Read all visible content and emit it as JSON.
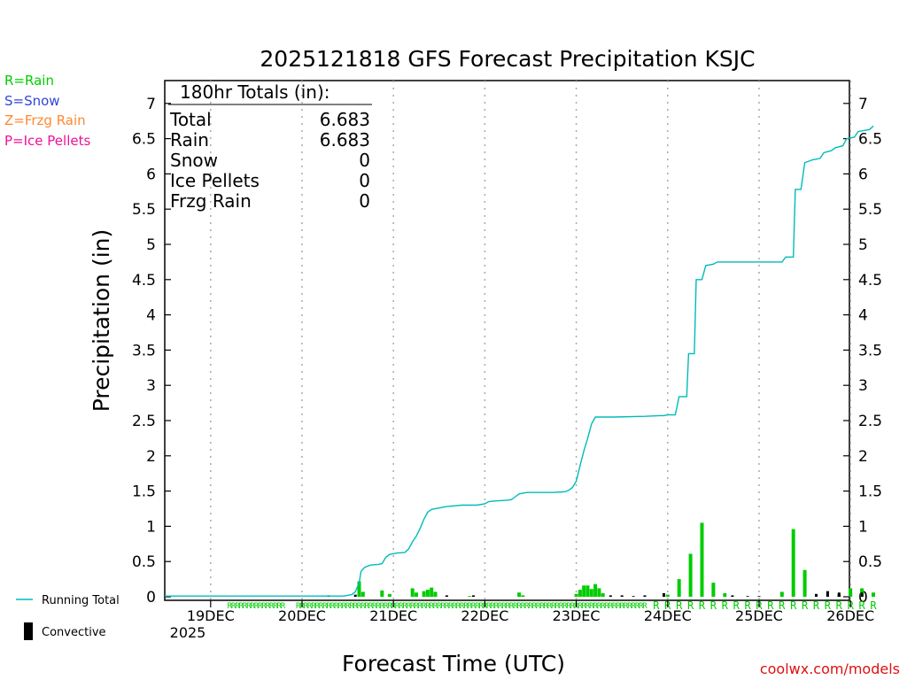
{
  "chart_data": {
    "type": "bar+line",
    "title": "2025121818 GFS Forecast Precipitation KSJC",
    "xlabel": "Forecast Time (UTC)",
    "ylabel": "Precipitation (in)",
    "ylim": [
      0,
      7.3
    ],
    "yticks": [
      0,
      0.5,
      1,
      1.5,
      2,
      2.5,
      3,
      3.5,
      4,
      4.5,
      5,
      5.5,
      6,
      6.5,
      7
    ],
    "ytick_labels": [
      "0",
      "0.5",
      "1",
      "1.5",
      "2",
      "2.5",
      "3",
      "3.5",
      "4",
      "4.5",
      "5",
      "5.5",
      "6",
      "6.5",
      "7"
    ],
    "xlim_hours": [
      -3,
      180
    ],
    "x_ticks": [
      {
        "hour": 6,
        "label": "19DEC"
      },
      {
        "hour": 30,
        "label": "20DEC"
      },
      {
        "hour": 54,
        "label": "21DEC"
      },
      {
        "hour": 78,
        "label": "22DEC"
      },
      {
        "hour": 102,
        "label": "23DEC"
      },
      {
        "hour": 126,
        "label": "24DEC"
      },
      {
        "hour": 150,
        "label": "25DEC"
      },
      {
        "hour": 174,
        "label": "26DEC"
      }
    ],
    "year_label": "2025",
    "grid": "dotted vertical at day boundaries",
    "legend": {
      "precip_types": [
        {
          "label": "R=Rain",
          "color": "#00cc00"
        },
        {
          "label": "S=Snow",
          "color": "#3344dd"
        },
        {
          "label": "Z=Frzg Rain",
          "color": "#ff8833"
        },
        {
          "label": "P=Ice Pellets",
          "color": "#ee1199"
        }
      ],
      "running_total_label": "Running Total",
      "convective_label": "Convective"
    },
    "totals_box": {
      "heading": "180hr Totals (in):",
      "rows": [
        {
          "label": "Total",
          "value": "6.683"
        },
        {
          "label": "Rain",
          "value": "6.683"
        },
        {
          "label": "Snow",
          "value": "0"
        },
        {
          "label": "Ice Pellets",
          "value": "0"
        },
        {
          "label": "Frzg Rain",
          "value": "0"
        }
      ]
    },
    "credit": "coolwx.com/models",
    "running_total": {
      "name": "Running Total",
      "color": "#00bbbb",
      "points": [
        [
          0,
          0.01
        ],
        [
          41,
          0.01
        ],
        [
          43,
          0.03
        ],
        [
          44,
          0.07
        ],
        [
          45,
          0.2
        ],
        [
          45.5,
          0.36
        ],
        [
          46.5,
          0.42
        ],
        [
          48,
          0.45
        ],
        [
          50,
          0.46
        ],
        [
          51,
          0.47
        ],
        [
          52,
          0.56
        ],
        [
          53,
          0.6
        ],
        [
          55,
          0.62
        ],
        [
          57,
          0.63
        ],
        [
          58,
          0.68
        ],
        [
          59,
          0.78
        ],
        [
          60,
          0.86
        ],
        [
          61,
          0.97
        ],
        [
          62,
          1.1
        ],
        [
          63,
          1.2
        ],
        [
          64,
          1.24
        ],
        [
          66,
          1.26
        ],
        [
          68,
          1.28
        ],
        [
          70,
          1.29
        ],
        [
          72,
          1.3
        ],
        [
          74,
          1.3
        ],
        [
          76,
          1.3
        ],
        [
          78,
          1.32
        ],
        [
          79,
          1.35
        ],
        [
          81,
          1.36
        ],
        [
          84,
          1.37
        ],
        [
          85,
          1.38
        ],
        [
          86,
          1.42
        ],
        [
          87,
          1.46
        ],
        [
          89,
          1.48
        ],
        [
          96,
          1.48
        ],
        [
          99,
          1.49
        ],
        [
          100,
          1.51
        ],
        [
          101,
          1.55
        ],
        [
          102,
          1.64
        ],
        [
          103,
          1.86
        ],
        [
          104,
          2.07
        ],
        [
          105,
          2.25
        ],
        [
          106,
          2.45
        ],
        [
          107,
          2.55
        ],
        [
          112,
          2.55
        ],
        [
          120,
          2.56
        ],
        [
          124,
          2.57
        ],
        [
          125,
          2.57
        ],
        [
          126,
          2.58
        ],
        [
          128,
          2.58
        ],
        [
          129,
          2.84
        ],
        [
          131,
          2.84
        ],
        [
          131.5,
          3.45
        ],
        [
          133,
          3.45
        ],
        [
          133.5,
          4.5
        ],
        [
          135,
          4.5
        ],
        [
          136,
          4.7
        ],
        [
          138,
          4.72
        ],
        [
          139,
          4.75
        ],
        [
          148,
          4.75
        ],
        [
          156,
          4.75
        ],
        [
          157,
          4.82
        ],
        [
          159,
          4.82
        ],
        [
          159.5,
          5.78
        ],
        [
          161,
          5.78
        ],
        [
          162,
          6.16
        ],
        [
          164,
          6.2
        ],
        [
          166,
          6.22
        ],
        [
          167,
          6.3
        ],
        [
          169,
          6.33
        ],
        [
          170,
          6.37
        ],
        [
          172,
          6.4
        ],
        [
          173,
          6.5
        ],
        [
          175,
          6.52
        ],
        [
          176,
          6.6
        ],
        [
          179,
          6.63
        ],
        [
          180,
          6.68
        ]
      ]
    },
    "series": [
      {
        "name": "Rain",
        "color": "#00cc00",
        "bars": [
          [
            45,
            0.22
          ],
          [
            46,
            0.07
          ],
          [
            51,
            0.09
          ],
          [
            53,
            0.04
          ],
          [
            59,
            0.12
          ],
          [
            60,
            0.06
          ],
          [
            62,
            0.08
          ],
          [
            63,
            0.1
          ],
          [
            64,
            0.13
          ],
          [
            65,
            0.07
          ],
          [
            74,
            0.01
          ],
          [
            87,
            0.06
          ],
          [
            88,
            0.02
          ],
          [
            102,
            0.04
          ],
          [
            103,
            0.1
          ],
          [
            104,
            0.16
          ],
          [
            105,
            0.16
          ],
          [
            106,
            0.11
          ],
          [
            107,
            0.18
          ],
          [
            108,
            0.12
          ],
          [
            109,
            0.05
          ],
          [
            126,
            0.03
          ],
          [
            129,
            0.25
          ],
          [
            132,
            0.61
          ],
          [
            135,
            1.05
          ],
          [
            138,
            0.2
          ],
          [
            141,
            0.05
          ],
          [
            156,
            0.07
          ],
          [
            159,
            0.96
          ],
          [
            162,
            0.38
          ],
          [
            171,
            0.03
          ],
          [
            174,
            0.12
          ],
          [
            177,
            0.12
          ],
          [
            180,
            0.06
          ]
        ]
      },
      {
        "name": "Convective",
        "color": "#000000",
        "bars": [
          [
            37,
            0.02
          ],
          [
            44,
            0.03
          ],
          [
            68,
            0.02
          ],
          [
            75,
            0.02
          ],
          [
            111,
            0.02
          ],
          [
            114,
            0.02
          ],
          [
            117,
            0.01
          ],
          [
            120,
            0.02
          ],
          [
            125,
            0.05
          ],
          [
            143,
            0.02
          ],
          [
            147,
            0.01
          ],
          [
            150,
            0.01
          ],
          [
            165,
            0.04
          ],
          [
            168,
            0.08
          ],
          [
            171,
            0.06
          ],
          [
            177,
            0.06
          ]
        ]
      }
    ],
    "precip_type_markers": {
      "dense_ranges": [
        [
          11,
          25
        ],
        [
          29,
          120
        ]
      ],
      "sparse_hours": [
        123,
        126,
        129,
        132,
        135,
        138,
        141,
        144,
        147,
        150,
        153,
        156,
        159,
        162,
        165,
        168,
        171,
        174,
        177,
        180
      ],
      "symbol": "R",
      "color": "#00cc00"
    }
  }
}
